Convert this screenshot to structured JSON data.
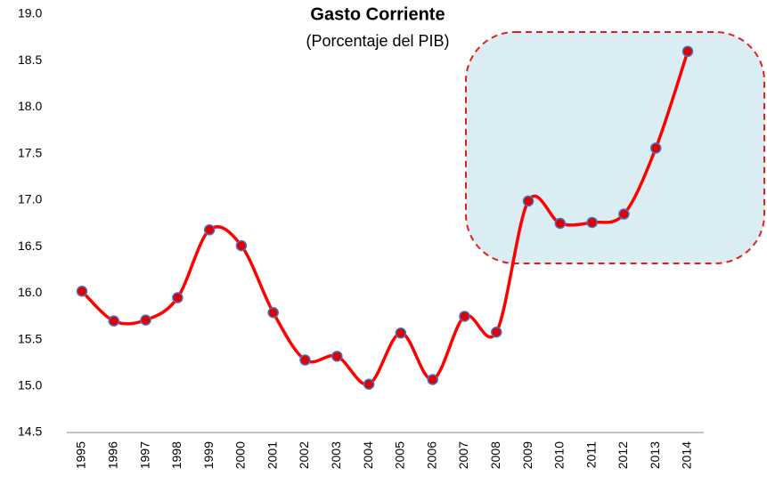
{
  "chart_data": {
    "type": "line",
    "title": "Gasto Corriente",
    "subtitle": "(Porcentaje del PIB)",
    "categories": [
      "1995",
      "1996",
      "1997",
      "1998",
      "1999",
      "2000",
      "2001",
      "2002",
      "2003",
      "2004",
      "2005",
      "2006",
      "2007",
      "2008",
      "2009",
      "2010",
      "2011",
      "2012",
      "2013",
      "2014"
    ],
    "values": [
      16.02,
      15.7,
      15.71,
      15.95,
      16.68,
      16.51,
      15.79,
      15.28,
      15.32,
      15.02,
      15.57,
      15.07,
      15.75,
      15.58,
      16.99,
      16.75,
      16.76,
      16.85,
      17.56,
      18.6
    ],
    "color": "#ff0000",
    "marker_color": "#e00000",
    "marker_edge_color": "#4472c4",
    "smooth": true,
    "grid": false,
    "ylim": [
      14.5,
      19.0
    ],
    "yticks": [
      14.5,
      {
        "value": 15,
        "label": "15.0"
      },
      15.5,
      {
        "value": 16,
        "label": "16.0"
      },
      16.5,
      {
        "value": 17,
        "label": "17.0"
      },
      17.5,
      {
        "value": 18,
        "label": "18.0"
      },
      18.5,
      {
        "value": 19,
        "label": "19.0"
      }
    ]
  }
}
